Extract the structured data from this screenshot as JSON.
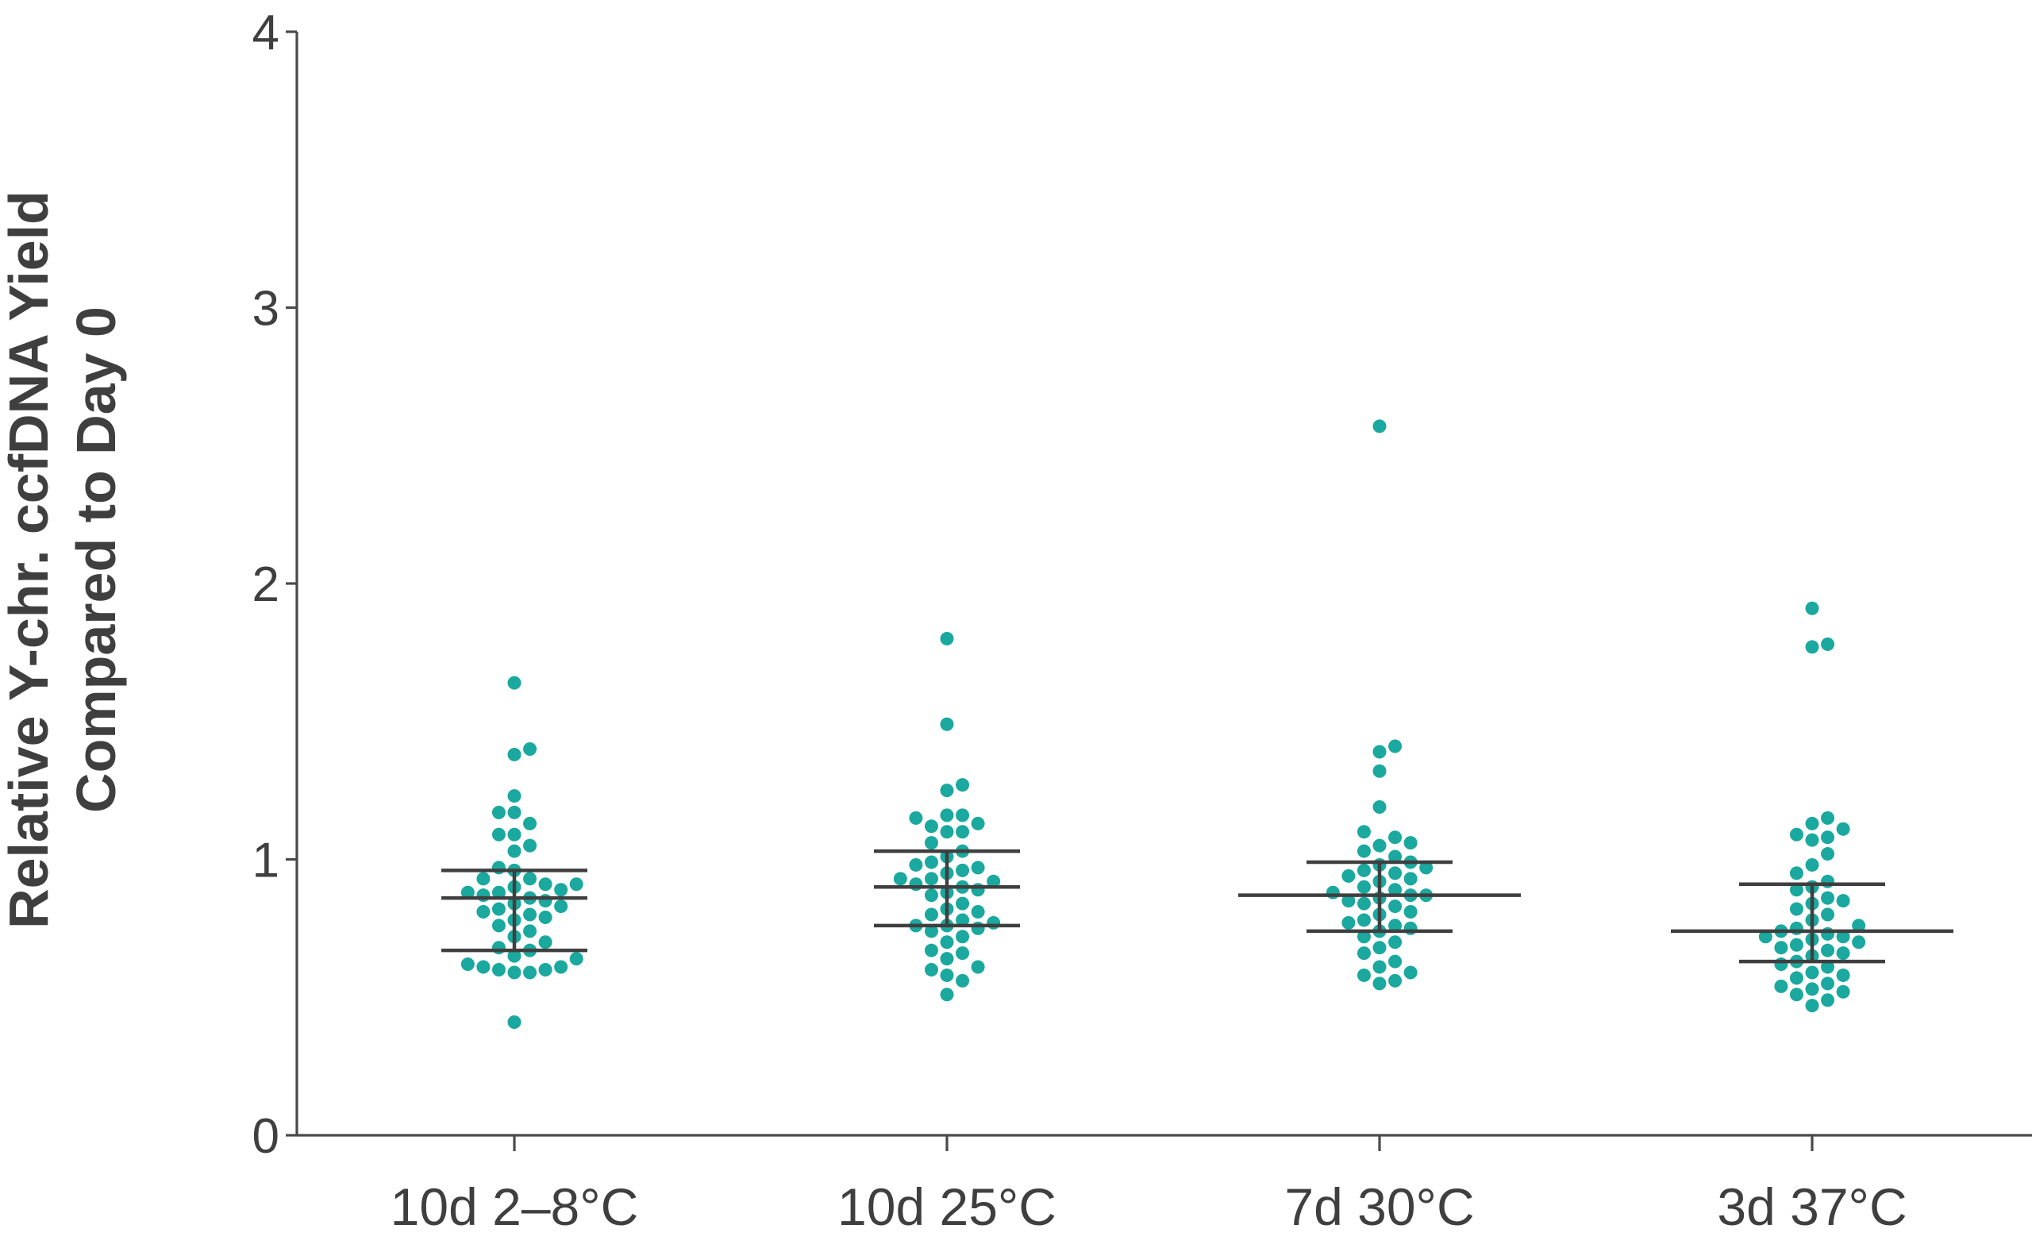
{
  "chart_data": {
    "type": "scatter",
    "ylabel": [
      "Relative Y-chr. ccfDNA Yield",
      "Compared to Day 0"
    ],
    "ylim": [
      0,
      4
    ],
    "yticks": [
      0,
      1,
      2,
      3,
      4
    ],
    "categories": [
      "10d 2–8°C",
      "10d 25°C",
      "7d 30°C",
      "3d 37°C"
    ],
    "grid": false,
    "colors": {
      "points": "#1aa89f",
      "lines": "#3f3f3f",
      "axis": "#4a4a4a"
    },
    "series": [
      {
        "values": [
          1.64,
          1.4,
          1.38,
          1.23,
          1.17,
          1.17,
          1.13,
          1.09,
          1.09,
          1.05,
          1.03,
          0.97,
          0.96,
          0.93,
          0.93,
          0.91,
          0.91,
          0.9,
          0.89,
          0.88,
          0.88,
          0.87,
          0.86,
          0.85,
          0.84,
          0.83,
          0.82,
          0.81,
          0.8,
          0.79,
          0.78,
          0.76,
          0.74,
          0.72,
          0.7,
          0.68,
          0.67,
          0.65,
          0.64,
          0.62,
          0.61,
          0.61,
          0.6,
          0.6,
          0.59,
          0.59,
          0.41
        ],
        "mean": 0.86,
        "upper": 0.96,
        "lower": 0.67
      },
      {
        "values": [
          1.8,
          1.49,
          1.27,
          1.25,
          1.16,
          1.16,
          1.15,
          1.13,
          1.12,
          1.1,
          1.1,
          1.06,
          1.03,
          1.01,
          0.99,
          0.98,
          0.97,
          0.96,
          0.95,
          0.93,
          0.93,
          0.92,
          0.91,
          0.9,
          0.89,
          0.88,
          0.87,
          0.84,
          0.82,
          0.81,
          0.8,
          0.78,
          0.77,
          0.76,
          0.76,
          0.75,
          0.74,
          0.72,
          0.7,
          0.67,
          0.66,
          0.64,
          0.61,
          0.6,
          0.58,
          0.56,
          0.51
        ],
        "mean": 0.9,
        "upper": 1.03,
        "lower": 0.76
      },
      {
        "values": [
          2.57,
          1.41,
          1.39,
          1.32,
          1.19,
          1.1,
          1.08,
          1.06,
          1.05,
          1.03,
          1.01,
          0.99,
          0.98,
          0.97,
          0.96,
          0.95,
          0.94,
          0.93,
          0.92,
          0.9,
          0.89,
          0.88,
          0.87,
          0.87,
          0.86,
          0.85,
          0.84,
          0.83,
          0.81,
          0.8,
          0.78,
          0.77,
          0.76,
          0.75,
          0.74,
          0.72,
          0.7,
          0.68,
          0.66,
          0.63,
          0.61,
          0.59,
          0.58,
          0.56,
          0.55
        ],
        "mean": 0.87,
        "upper": 0.99,
        "lower": 0.74
      },
      {
        "values": [
          1.91,
          1.78,
          1.77,
          1.15,
          1.13,
          1.11,
          1.09,
          1.08,
          1.07,
          1.02,
          0.98,
          0.95,
          0.92,
          0.9,
          0.89,
          0.86,
          0.85,
          0.84,
          0.82,
          0.8,
          0.78,
          0.76,
          0.75,
          0.74,
          0.73,
          0.72,
          0.72,
          0.71,
          0.7,
          0.69,
          0.68,
          0.67,
          0.66,
          0.65,
          0.63,
          0.62,
          0.61,
          0.59,
          0.58,
          0.57,
          0.55,
          0.54,
          0.53,
          0.52,
          0.51,
          0.49,
          0.47
        ],
        "mean": 0.74,
        "upper": 0.91,
        "lower": 0.63
      }
    ]
  }
}
